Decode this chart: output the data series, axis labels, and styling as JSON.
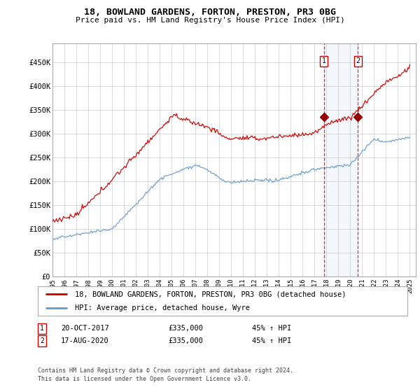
{
  "title": "18, BOWLAND GARDENS, FORTON, PRESTON, PR3 0BG",
  "subtitle": "Price paid vs. HM Land Registry's House Price Index (HPI)",
  "yticks": [
    0,
    50000,
    100000,
    150000,
    200000,
    250000,
    300000,
    350000,
    400000,
    450000
  ],
  "ytick_labels": [
    "£0",
    "£50K",
    "£100K",
    "£150K",
    "£200K",
    "£250K",
    "£300K",
    "£350K",
    "£400K",
    "£450K"
  ],
  "xlim_start": 1995.0,
  "xlim_end": 2025.5,
  "ylim": [
    0,
    490000
  ],
  "hpi_color": "#6699cc",
  "price_color": "#cc0000",
  "grid_color": "#cccccc",
  "transaction1_x": 2017.8,
  "transaction1_y": 335000,
  "transaction2_x": 2020.65,
  "transaction2_y": 335000,
  "legend_label1": "18, BOWLAND GARDENS, FORTON, PRESTON, PR3 0BG (detached house)",
  "legend_label2": "HPI: Average price, detached house, Wyre",
  "footer": "Contains HM Land Registry data © Crown copyright and database right 2024.\nThis data is licensed under the Open Government Licence v3.0.",
  "xticks": [
    1995,
    1996,
    1997,
    1998,
    1999,
    2000,
    2001,
    2002,
    2003,
    2004,
    2005,
    2006,
    2007,
    2008,
    2009,
    2010,
    2011,
    2012,
    2013,
    2014,
    2015,
    2016,
    2017,
    2018,
    2019,
    2020,
    2021,
    2022,
    2023,
    2024,
    2025
  ]
}
